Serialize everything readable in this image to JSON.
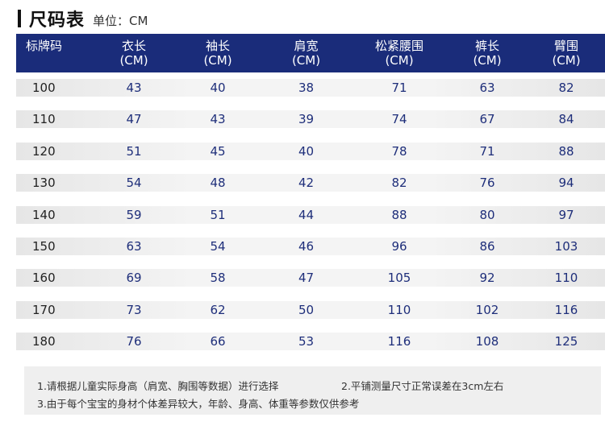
{
  "title": "尺码表",
  "unit": "单位：CM",
  "table": {
    "headers": [
      {
        "name": "标牌码",
        "unit": ""
      },
      {
        "name": "衣长",
        "unit": "(CM)"
      },
      {
        "name": "袖长",
        "unit": "(CM)"
      },
      {
        "name": "肩宽",
        "unit": "(CM)"
      },
      {
        "name": "松紧腰围",
        "unit": "(CM)"
      },
      {
        "name": "裤长",
        "unit": "(CM)"
      },
      {
        "name": "臂围",
        "unit": "(CM)"
      }
    ],
    "rows": [
      [
        "100",
        "43",
        "40",
        "38",
        "71",
        "63",
        "82"
      ],
      [
        "110",
        "47",
        "43",
        "39",
        "74",
        "67",
        "84"
      ],
      [
        "120",
        "51",
        "45",
        "40",
        "78",
        "71",
        "88"
      ],
      [
        "130",
        "54",
        "48",
        "42",
        "82",
        "76",
        "94"
      ],
      [
        "140",
        "59",
        "51",
        "44",
        "88",
        "80",
        "97"
      ],
      [
        "150",
        "63",
        "54",
        "46",
        "96",
        "86",
        "103"
      ],
      [
        "160",
        "69",
        "58",
        "47",
        "105",
        "92",
        "110"
      ],
      [
        "170",
        "73",
        "62",
        "50",
        "110",
        "102",
        "116"
      ],
      [
        "180",
        "76",
        "66",
        "53",
        "116",
        "108",
        "125"
      ]
    ]
  },
  "notes": [
    "1.请根据儿童实际身高（肩宽、胸围等数据）进行选择",
    "2.平铺测量尺寸正常误差在3cm左右",
    "3.由于每个宝宝的身材个体差异较大，年龄、身高、体重等参数仅供参考"
  ],
  "colors": {
    "header_bg": "#1a2c7a",
    "value_text": "#1e2e7a"
  }
}
